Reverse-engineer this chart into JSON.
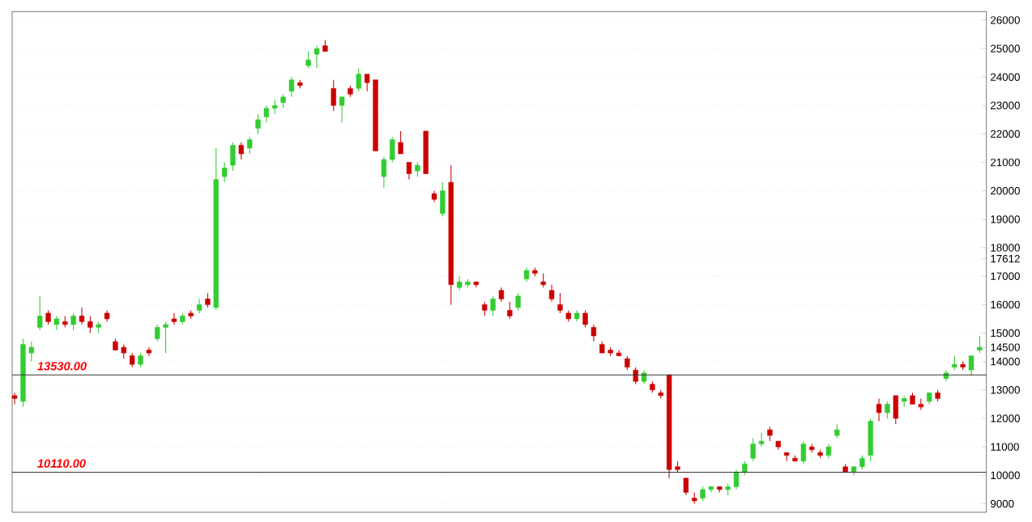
{
  "chart_data": {
    "type": "candlestick",
    "categories": [
      null,
      null,
      null,
      null,
      null,
      null,
      null,
      null,
      null,
      null,
      null,
      null,
      null,
      null,
      null,
      null,
      null,
      null,
      null,
      null,
      null,
      null,
      null,
      null,
      null,
      null,
      null,
      null,
      null,
      null,
      null,
      null,
      null,
      null,
      null,
      null,
      null,
      null,
      null,
      null,
      null,
      null,
      null,
      null,
      null,
      null,
      null,
      null,
      null,
      null,
      null,
      null,
      null,
      null,
      null,
      null,
      null,
      null,
      null,
      null,
      null,
      null,
      null,
      null,
      null,
      null,
      null,
      null,
      null,
      null,
      null,
      null,
      null,
      null,
      null,
      null,
      null,
      null,
      null,
      null,
      null,
      null,
      null,
      null,
      null,
      null,
      null,
      null,
      null,
      null,
      null,
      null,
      null,
      null,
      null,
      null,
      null,
      null,
      null,
      null,
      null,
      null,
      null,
      null,
      null,
      null,
      null,
      null,
      null,
      null,
      null,
      null,
      null,
      null,
      null,
      null
    ],
    "ohlc": [
      [
        12800,
        12900,
        12500,
        12700
      ],
      [
        12600,
        14800,
        12400,
        14600
      ],
      [
        14300,
        14700,
        14000,
        14500
      ],
      [
        15200,
        16300,
        15100,
        15600
      ],
      [
        15700,
        15800,
        15300,
        15400
      ],
      [
        15300,
        15600,
        15100,
        15500
      ],
      [
        15400,
        15600,
        15200,
        15300
      ],
      [
        15300,
        15700,
        15100,
        15600
      ],
      [
        15600,
        15900,
        15300,
        15400
      ],
      [
        15400,
        15600,
        15000,
        15200
      ],
      [
        15200,
        15400,
        15000,
        15300
      ],
      [
        15700,
        15800,
        15400,
        15500
      ],
      [
        14700,
        14800,
        14400,
        14400
      ],
      [
        14500,
        14600,
        14100,
        14300
      ],
      [
        14200,
        14300,
        13800,
        13900
      ],
      [
        13900,
        14300,
        13800,
        14200
      ],
      [
        14400,
        14500,
        14200,
        14300
      ],
      [
        14800,
        15300,
        14700,
        15200
      ],
      [
        15200,
        15400,
        14300,
        15300
      ],
      [
        15500,
        15700,
        15300,
        15400
      ],
      [
        15400,
        15700,
        15300,
        15600
      ],
      [
        15700,
        15800,
        15500,
        15600
      ],
      [
        15800,
        16200,
        15700,
        16000
      ],
      [
        16200,
        16400,
        15900,
        16000
      ],
      [
        15900,
        21500,
        15800,
        20400
      ],
      [
        20500,
        21000,
        20300,
        20800
      ],
      [
        20900,
        21700,
        20700,
        21600
      ],
      [
        21600,
        21700,
        21100,
        21300
      ],
      [
        21500,
        21900,
        21300,
        21800
      ],
      [
        22200,
        22700,
        22000,
        22500
      ],
      [
        22600,
        23000,
        22400,
        22900
      ],
      [
        22900,
        23200,
        22700,
        23000
      ],
      [
        23100,
        23400,
        22900,
        23300
      ],
      [
        23500,
        24000,
        23300,
        23900
      ],
      [
        23800,
        23900,
        23600,
        23700
      ],
      [
        24400,
        24900,
        24300,
        24600
      ],
      [
        24800,
        25100,
        24300,
        25000
      ],
      [
        25100,
        25300,
        24900,
        24900
      ],
      [
        23600,
        23900,
        22800,
        23000
      ],
      [
        23000,
        23300,
        22400,
        23300
      ],
      [
        23600,
        23700,
        23300,
        23400
      ],
      [
        23600,
        24300,
        23500,
        24100
      ],
      [
        24100,
        24100,
        23500,
        23800
      ],
      [
        23900,
        23900,
        21400,
        21400
      ],
      [
        20500,
        21200,
        20100,
        21100
      ],
      [
        21100,
        21900,
        21000,
        21800
      ],
      [
        21700,
        22100,
        21300,
        21300
      ],
      [
        21000,
        21000,
        20400,
        20600
      ],
      [
        20700,
        21000,
        20500,
        20900
      ],
      [
        22100,
        22100,
        20600,
        20600
      ],
      [
        19900,
        20000,
        19600,
        19700
      ],
      [
        19200,
        20300,
        19100,
        20000
      ],
      [
        20300,
        20900,
        16000,
        16700
      ],
      [
        16600,
        17000,
        16500,
        16800
      ],
      [
        16700,
        16900,
        16600,
        16800
      ],
      [
        16800,
        16800,
        16600,
        16700
      ],
      [
        16000,
        16100,
        15600,
        15800
      ],
      [
        15800,
        16300,
        15600,
        16200
      ],
      [
        16500,
        16600,
        16100,
        16200
      ],
      [
        15800,
        16100,
        15500,
        15600
      ],
      [
        15900,
        16400,
        15800,
        16300
      ],
      [
        16900,
        17300,
        16800,
        17200
      ],
      [
        17200,
        17300,
        17000,
        17100
      ],
      [
        16800,
        17100,
        16600,
        16700
      ],
      [
        16500,
        16700,
        16100,
        16200
      ],
      [
        16000,
        16400,
        15700,
        15800
      ],
      [
        15700,
        15800,
        15400,
        15500
      ],
      [
        15500,
        15800,
        15400,
        15700
      ],
      [
        15700,
        15800,
        15200,
        15300
      ],
      [
        15200,
        15300,
        14700,
        14900
      ],
      [
        14600,
        14700,
        14300,
        14300
      ],
      [
        14400,
        14500,
        14200,
        14300
      ],
      [
        14300,
        14400,
        14200,
        14200
      ],
      [
        14100,
        14200,
        13700,
        13800
      ],
      [
        13700,
        13800,
        13200,
        13300
      ],
      [
        13300,
        13700,
        13200,
        13600
      ],
      [
        13200,
        13300,
        12900,
        13000
      ],
      [
        12900,
        13000,
        12700,
        12800
      ],
      [
        13530,
        13530,
        9900,
        10200
      ],
      [
        10300,
        10500,
        10100,
        10200
      ],
      [
        9900,
        9900,
        9300,
        9400
      ],
      [
        9200,
        9400,
        9000,
        9100
      ],
      [
        9200,
        9600,
        9100,
        9500
      ],
      [
        9500,
        9600,
        9400,
        9600
      ],
      [
        9600,
        9600,
        9400,
        9500
      ],
      [
        9500,
        9700,
        9300,
        9600
      ],
      [
        9600,
        10200,
        9500,
        10100
      ],
      [
        10100,
        10500,
        10000,
        10400
      ],
      [
        10600,
        11300,
        10500,
        11100
      ],
      [
        11100,
        11500,
        11000,
        11200
      ],
      [
        11600,
        11700,
        11200,
        11400
      ],
      [
        11200,
        11200,
        10900,
        11000
      ],
      [
        10800,
        10800,
        10500,
        10700
      ],
      [
        10600,
        10700,
        10500,
        10500
      ],
      [
        10500,
        11200,
        10400,
        11100
      ],
      [
        11000,
        11100,
        10800,
        10900
      ],
      [
        10800,
        10900,
        10600,
        10700
      ],
      [
        10700,
        11100,
        10600,
        11000
      ],
      [
        11400,
        11800,
        11300,
        11600
      ],
      [
        10300,
        10400,
        10100,
        10100
      ],
      [
        10100,
        10300,
        10000,
        10300
      ],
      [
        10300,
        10700,
        10200,
        10600
      ],
      [
        10700,
        12000,
        10500,
        11900
      ],
      [
        12500,
        12700,
        11900,
        12200
      ],
      [
        12200,
        12600,
        12000,
        12500
      ],
      [
        12800,
        12800,
        11800,
        12000
      ],
      [
        12600,
        12800,
        12400,
        12700
      ],
      [
        12800,
        12900,
        12500,
        12500
      ],
      [
        12500,
        12700,
        12300,
        12400
      ],
      [
        12600,
        12900,
        12500,
        12900
      ],
      [
        12900,
        13000,
        12600,
        12700
      ],
      [
        13400,
        13700,
        13300,
        13600
      ],
      [
        13800,
        14200,
        13700,
        13900
      ],
      [
        13900,
        14000,
        13700,
        13800
      ],
      [
        13700,
        14200,
        13500,
        14200
      ],
      [
        14400,
        14900,
        14300,
        14500
      ]
    ],
    "colors": [
      "#cc0000",
      "#33cc33",
      "#33cc33",
      "#33cc33",
      "#cc0000",
      "#33cc33",
      "#cc0000",
      "#33cc33",
      "#cc0000",
      "#cc0000",
      "#33cc33",
      "#cc0000",
      "#cc0000",
      "#cc0000",
      "#cc0000",
      "#33cc33",
      "#cc0000",
      "#33cc33",
      "#33cc33",
      "#cc0000",
      "#33cc33",
      "#cc0000",
      "#33cc33",
      "#cc0000",
      "#33cc33",
      "#33cc33",
      "#33cc33",
      "#cc0000",
      "#33cc33",
      "#33cc33",
      "#33cc33",
      "#33cc33",
      "#33cc33",
      "#33cc33",
      "#cc0000",
      "#33cc33",
      "#33cc33",
      "#cc0000",
      "#cc0000",
      "#33cc33",
      "#cc0000",
      "#33cc33",
      "#cc0000",
      "#cc0000",
      "#33cc33",
      "#33cc33",
      "#cc0000",
      "#cc0000",
      "#33cc33",
      "#cc0000",
      "#cc0000",
      "#33cc33",
      "#cc0000",
      "#33cc33",
      "#33cc33",
      "#cc0000",
      "#cc0000",
      "#33cc33",
      "#cc0000",
      "#cc0000",
      "#33cc33",
      "#33cc33",
      "#cc0000",
      "#cc0000",
      "#cc0000",
      "#cc0000",
      "#cc0000",
      "#33cc33",
      "#cc0000",
      "#cc0000",
      "#cc0000",
      "#cc0000",
      "#cc0000",
      "#cc0000",
      "#cc0000",
      "#33cc33",
      "#cc0000",
      "#cc0000",
      "#cc0000",
      "#cc0000",
      "#cc0000",
      "#cc0000",
      "#33cc33",
      "#33cc33",
      "#cc0000",
      "#33cc33",
      "#33cc33",
      "#33cc33",
      "#33cc33",
      "#33cc33",
      "#cc0000",
      "#cc0000",
      "#cc0000",
      "#cc0000",
      "#33cc33",
      "#cc0000",
      "#cc0000",
      "#33cc33",
      "#33cc33",
      "#cc0000",
      "#33cc33",
      "#33cc33",
      "#33cc33",
      "#cc0000",
      "#33cc33",
      "#cc0000",
      "#33cc33",
      "#cc0000",
      "#cc0000",
      "#33cc33",
      "#cc0000",
      "#33cc33",
      "#33cc33",
      "#cc0000",
      "#33cc33",
      "#33cc33"
    ],
    "ylim": [
      8700,
      26300
    ],
    "yticks": [
      9000,
      10000,
      11000,
      12000,
      13000,
      14000,
      {
        "value": 14500,
        "label": "14500"
      },
      15000,
      16000,
      17000,
      {
        "value": 17612,
        "label": "17612"
      },
      18000,
      19000,
      20000,
      21000,
      22000,
      23000,
      24000,
      25000,
      26000
    ],
    "grid": "y",
    "tick_labels": "y",
    "ref_lines": [
      {
        "axis": "y",
        "value": 13530,
        "label": "13530.00",
        "color": "#333333"
      },
      {
        "axis": "y",
        "value": 10110,
        "label": "10110.00",
        "color": "#333333"
      }
    ]
  }
}
